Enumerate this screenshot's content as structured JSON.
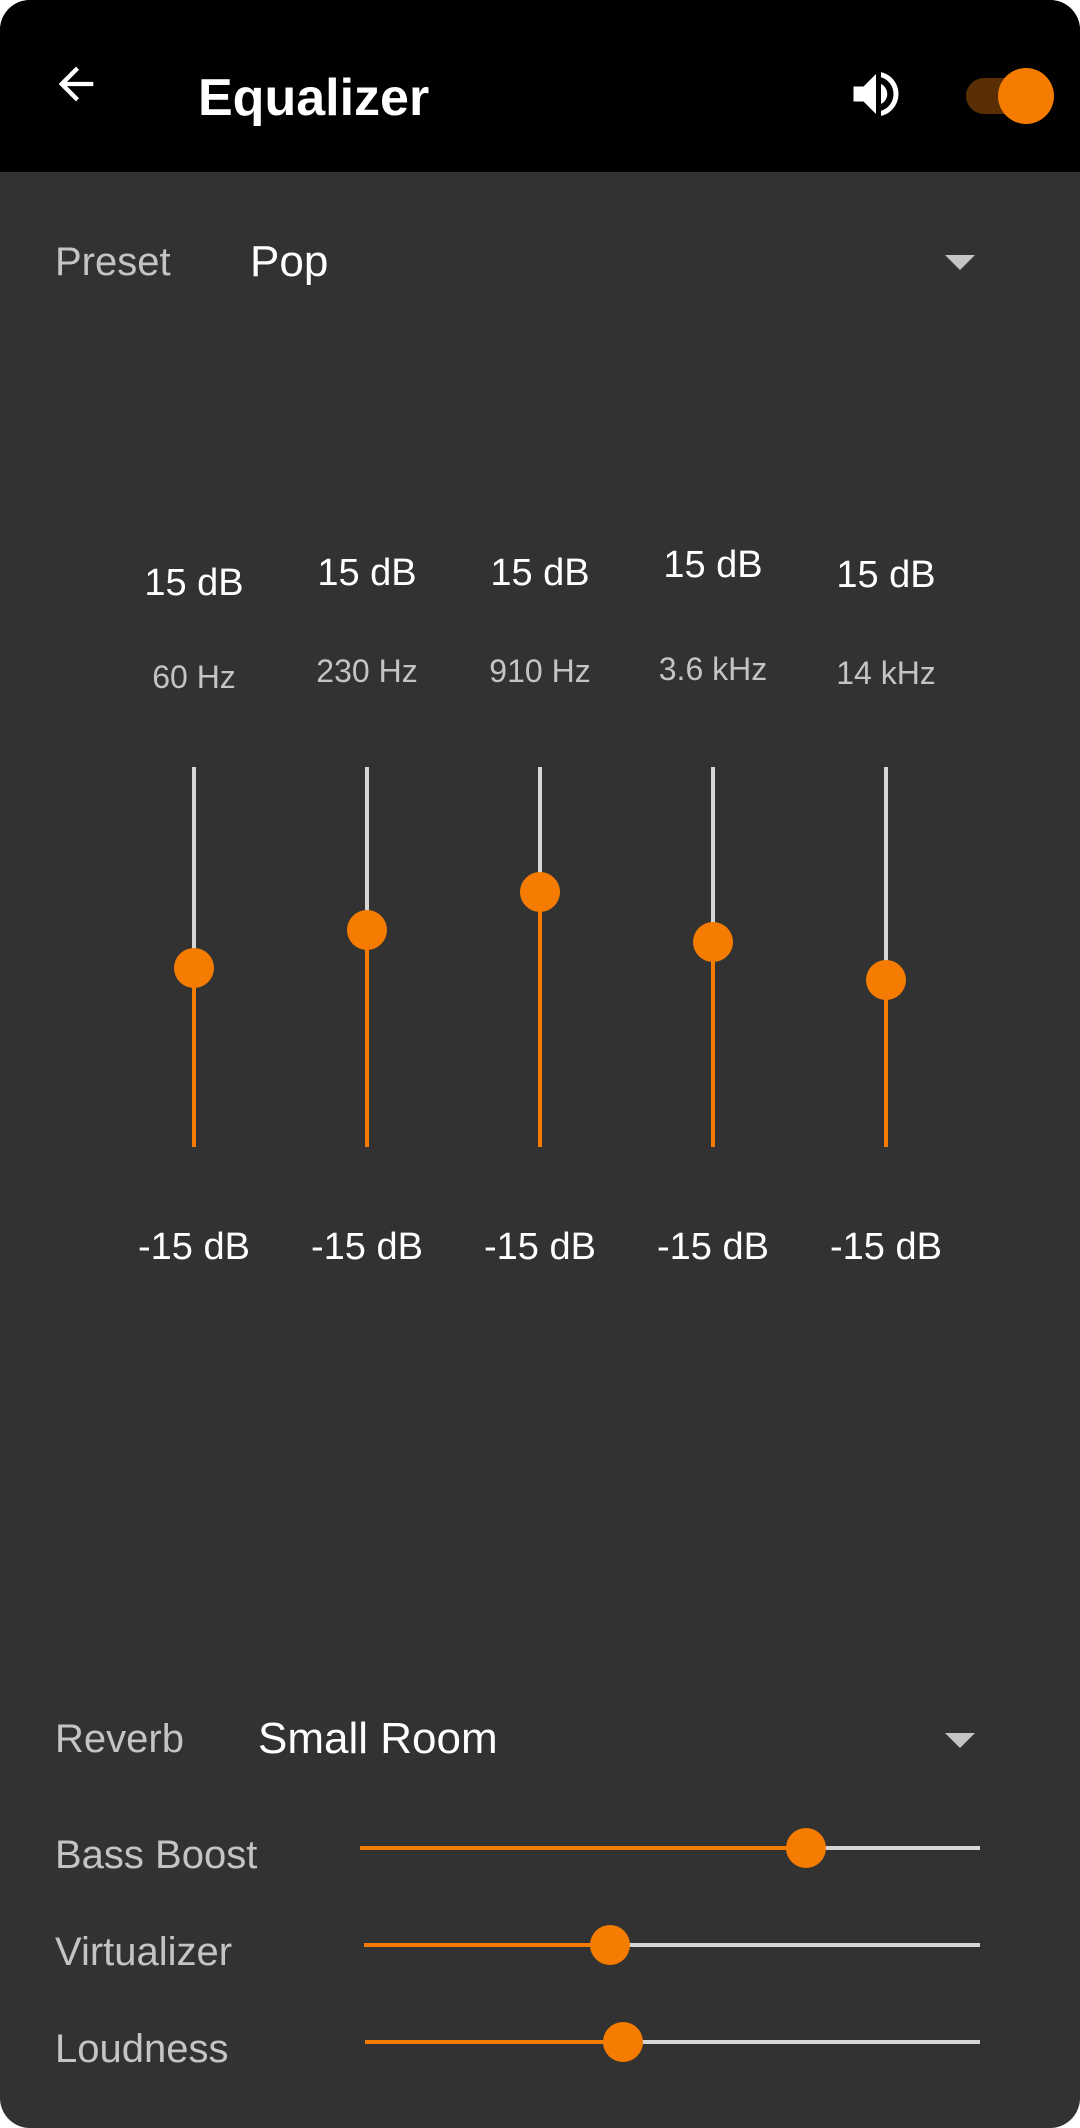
{
  "app": {
    "title": "Equalizer",
    "enabled": true,
    "accent_color": "#f57c00",
    "icons": {
      "back": "arrow-left-icon",
      "volume": "volume-up-icon"
    }
  },
  "preset": {
    "label": "Preset",
    "value": "Pop"
  },
  "bands": [
    {
      "freq": "60 Hz",
      "max": "15 dB",
      "min": "-15 dB",
      "level": 0.47
    },
    {
      "freq": "230 Hz",
      "max": "15 dB",
      "min": "-15 dB",
      "level": 0.57
    },
    {
      "freq": "910 Hz",
      "max": "15 dB",
      "min": "-15 dB",
      "level": 0.67
    },
    {
      "freq": "3.6 kHz",
      "max": "15 dB",
      "min": "-15 dB",
      "level": 0.54
    },
    {
      "freq": "14 kHz",
      "max": "15 dB",
      "min": "-15 dB",
      "level": 0.44
    }
  ],
  "reverb": {
    "label": "Reverb",
    "value": "Small Room"
  },
  "effects": {
    "bass_boost": {
      "label": "Bass Boost",
      "level": 0.72
    },
    "virtualizer": {
      "label": "Virtualizer",
      "level": 0.4
    },
    "loudness": {
      "label": "Loudness",
      "level": 0.42
    }
  }
}
